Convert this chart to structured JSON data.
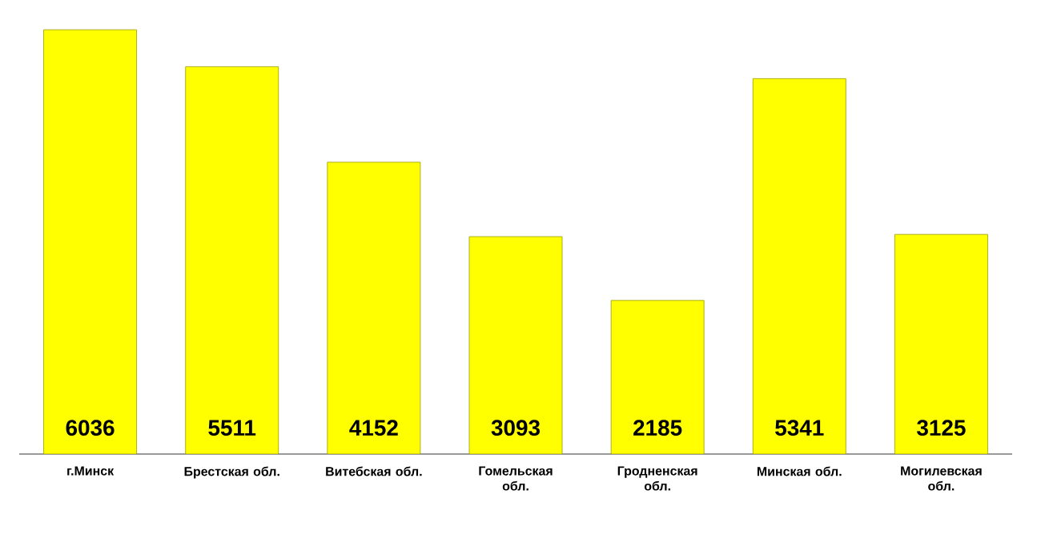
{
  "chart_data": {
    "type": "bar",
    "categories": [
      "г.Минск",
      "Брестская обл.",
      "Витебская обл.",
      "Гомельская обл.",
      "Гродненская обл.",
      "Минская  обл.",
      "Могилевская обл."
    ],
    "values": [
      6036,
      5511,
      4152,
      3093,
      2185,
      5341,
      3125
    ],
    "color": "#ffff00",
    "data_labels": true
  }
}
